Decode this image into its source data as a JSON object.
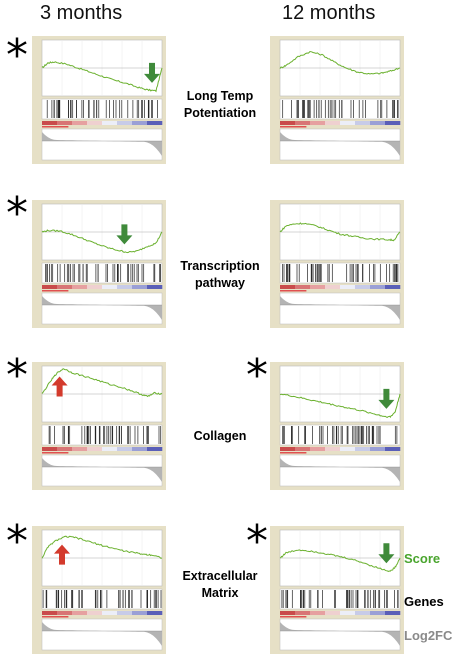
{
  "column_titles": [
    "3 months",
    "12 months"
  ],
  "significance_mark": "*",
  "gene_sets": [
    "Long Temp Potentiation",
    "Transcription pathway",
    "Collagen",
    "Extracellular Matrix"
  ],
  "legend": {
    "score": "Score",
    "genes": "Genes",
    "log2fc": "Log2FC"
  },
  "colors": {
    "score_line": "#6bb12f",
    "legend_score": "#4aa52e",
    "legend_log2fc": "#8a8a8a",
    "arrow_up": "#d33a2c",
    "arrow_down": "#3f8a3a",
    "panel_frame": "#e6e0c6"
  },
  "chart_data": [
    {
      "type": "line",
      "gene_set": "Long Temp Potentiation",
      "timepoint": "3 months",
      "significant": true,
      "arrow": "down",
      "x": [
        0,
        0.05,
        0.1,
        0.2,
        0.3,
        0.4,
        0.5,
        0.6,
        0.7,
        0.8,
        0.88,
        0.95,
        1.0
      ],
      "enrichment_score": [
        0.0,
        0.1,
        0.12,
        0.08,
        0.0,
        -0.08,
        -0.16,
        -0.24,
        -0.3,
        -0.38,
        -0.43,
        -0.45,
        0.0
      ]
    },
    {
      "type": "line",
      "gene_set": "Long Temp Potentiation",
      "timepoint": "12 months",
      "significant": false,
      "arrow": "none",
      "x": [
        0,
        0.05,
        0.15,
        0.25,
        0.35,
        0.45,
        0.55,
        0.65,
        0.75,
        0.85,
        0.92,
        1.0
      ],
      "enrichment_score": [
        0.0,
        0.05,
        0.22,
        0.32,
        0.26,
        0.12,
        0.0,
        -0.08,
        -0.12,
        -0.1,
        -0.06,
        0.0
      ]
    },
    {
      "type": "line",
      "gene_set": "Transcription pathway",
      "timepoint": "3 months",
      "significant": true,
      "arrow": "down",
      "x": [
        0,
        0.05,
        0.15,
        0.25,
        0.35,
        0.45,
        0.55,
        0.65,
        0.72,
        0.8,
        0.88,
        0.95,
        1.0
      ],
      "enrichment_score": [
        0.0,
        0.03,
        0.02,
        -0.05,
        -0.14,
        -0.23,
        -0.31,
        -0.37,
        -0.4,
        -0.37,
        -0.28,
        -0.22,
        0.0
      ]
    },
    {
      "type": "line",
      "gene_set": "Transcription pathway",
      "timepoint": "12 months",
      "significant": false,
      "arrow": "none",
      "x": [
        0,
        0.05,
        0.12,
        0.2,
        0.3,
        0.4,
        0.5,
        0.6,
        0.7,
        0.8,
        0.9,
        0.95,
        1.0
      ],
      "enrichment_score": [
        0.0,
        0.12,
        0.16,
        0.17,
        0.12,
        0.04,
        -0.04,
        -0.08,
        -0.12,
        -0.14,
        -0.15,
        -0.16,
        0.0
      ]
    },
    {
      "type": "line",
      "gene_set": "Collagen",
      "timepoint": "3 months",
      "significant": true,
      "arrow": "up",
      "x": [
        0,
        0.08,
        0.12,
        0.18,
        0.25,
        0.35,
        0.45,
        0.55,
        0.65,
        0.75,
        0.82,
        0.88,
        0.94,
        1.0
      ],
      "enrichment_score": [
        0.0,
        0.28,
        0.4,
        0.5,
        0.42,
        0.35,
        0.28,
        0.2,
        0.14,
        0.06,
        0.0,
        -0.05,
        0.02,
        0.0
      ]
    },
    {
      "type": "line",
      "gene_set": "Collagen",
      "timepoint": "12 months",
      "significant": true,
      "arrow": "down",
      "x": [
        0,
        0.1,
        0.2,
        0.3,
        0.4,
        0.5,
        0.6,
        0.7,
        0.8,
        0.87,
        0.92,
        0.96,
        1.0
      ],
      "enrichment_score": [
        0.0,
        -0.04,
        -0.09,
        -0.14,
        -0.19,
        -0.24,
        -0.29,
        -0.34,
        -0.4,
        -0.44,
        -0.45,
        -0.35,
        0.0
      ]
    },
    {
      "type": "line",
      "gene_set": "Extracellular Matrix",
      "timepoint": "3 months",
      "significant": true,
      "arrow": "up",
      "x": [
        0,
        0.05,
        0.12,
        0.2,
        0.28,
        0.38,
        0.48,
        0.58,
        0.68,
        0.78,
        0.86,
        0.92,
        1.0
      ],
      "enrichment_score": [
        0.0,
        0.22,
        0.35,
        0.42,
        0.4,
        0.33,
        0.26,
        0.2,
        0.14,
        0.1,
        0.07,
        0.06,
        0.0
      ]
    },
    {
      "type": "line",
      "gene_set": "Extracellular Matrix",
      "timepoint": "12 months",
      "significant": true,
      "arrow": "down",
      "x": [
        0,
        0.05,
        0.15,
        0.25,
        0.35,
        0.45,
        0.55,
        0.65,
        0.75,
        0.85,
        0.92,
        0.96,
        1.0
      ],
      "enrichment_score": [
        0.0,
        0.1,
        0.16,
        0.14,
        0.1,
        0.05,
        0.0,
        -0.06,
        -0.14,
        -0.22,
        -0.26,
        -0.18,
        0.0
      ]
    }
  ]
}
